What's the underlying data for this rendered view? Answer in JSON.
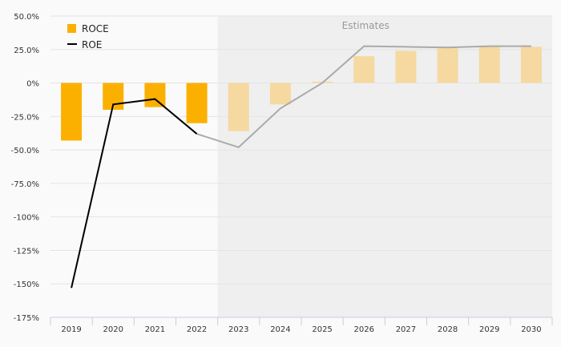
{
  "chart_data": {
    "type": "bar",
    "categories": [
      "2019",
      "2020",
      "2021",
      "2022",
      "2023",
      "2024",
      "2025",
      "2026",
      "2027",
      "2028",
      "2029",
      "2030"
    ],
    "series": [
      {
        "name": "ROCE",
        "kind": "bar",
        "values": [
          -43,
          -20,
          -18,
          -30,
          -36,
          -16,
          1,
          20,
          24,
          26,
          27,
          27
        ]
      },
      {
        "name": "ROE",
        "kind": "line",
        "values": [
          -153,
          -16,
          -12,
          -38,
          -48,
          -19,
          0,
          27.5,
          27,
          26.5,
          27.5,
          27.5
        ]
      }
    ],
    "ylim": [
      -175,
      50
    ],
    "yticks": [
      50,
      25,
      0,
      -25,
      -50,
      -75,
      -100,
      -125,
      -150,
      -175
    ],
    "ytick_labels": [
      "50.0%",
      "25.0%",
      "0%",
      "-25.0%",
      "-50.0%",
      "-75.0%",
      "-100%",
      "-125%",
      "-150%",
      "-175%"
    ],
    "estimates_label": "Estimates",
    "estimates_start_index": 4,
    "legend_position": "top-left",
    "grid": true,
    "colors": {
      "roce_actual": "#fbb000",
      "roce_estimate": "#f5d9a0",
      "roe_actual": "#000000",
      "roe_estimate": "#aaaaaa",
      "estimate_band": "#efefef"
    }
  }
}
